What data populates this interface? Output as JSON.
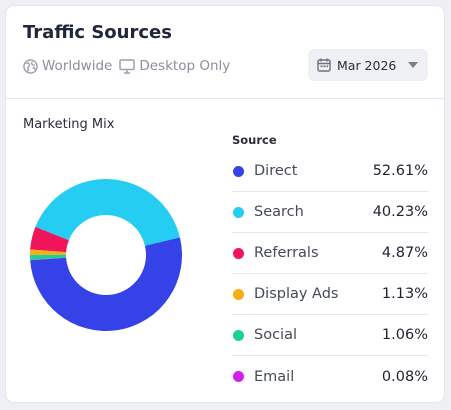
{
  "header": {
    "title": "Traffic Sources",
    "filters": [
      {
        "label": "Worldwide",
        "icon": "globe-icon"
      },
      {
        "label": "Desktop Only",
        "icon": "monitor-icon"
      }
    ],
    "date": {
      "label": "Mar 2026",
      "icon": "calendar-icon"
    }
  },
  "chart_data": {
    "type": "pie",
    "title": "Marketing Mix",
    "legend_header": "Source",
    "donut": true,
    "legend_placement": "right",
    "series": [
      {
        "name": "Direct",
        "value": 52.61,
        "label": "52.61%",
        "color": "#3442e8"
      },
      {
        "name": "Search",
        "value": 40.23,
        "label": "40.23%",
        "color": "#25cdf3"
      },
      {
        "name": "Referrals",
        "value": 4.87,
        "label": "4.87%",
        "color": "#f0145a"
      },
      {
        "name": "Display Ads",
        "value": 1.13,
        "label": "1.13%",
        "color": "#f7ae16"
      },
      {
        "name": "Social",
        "value": 1.06,
        "label": "1.06%",
        "color": "#19d190"
      },
      {
        "name": "Email",
        "value": 0.08,
        "label": "0.08%",
        "color": "#d61fe8"
      }
    ]
  }
}
